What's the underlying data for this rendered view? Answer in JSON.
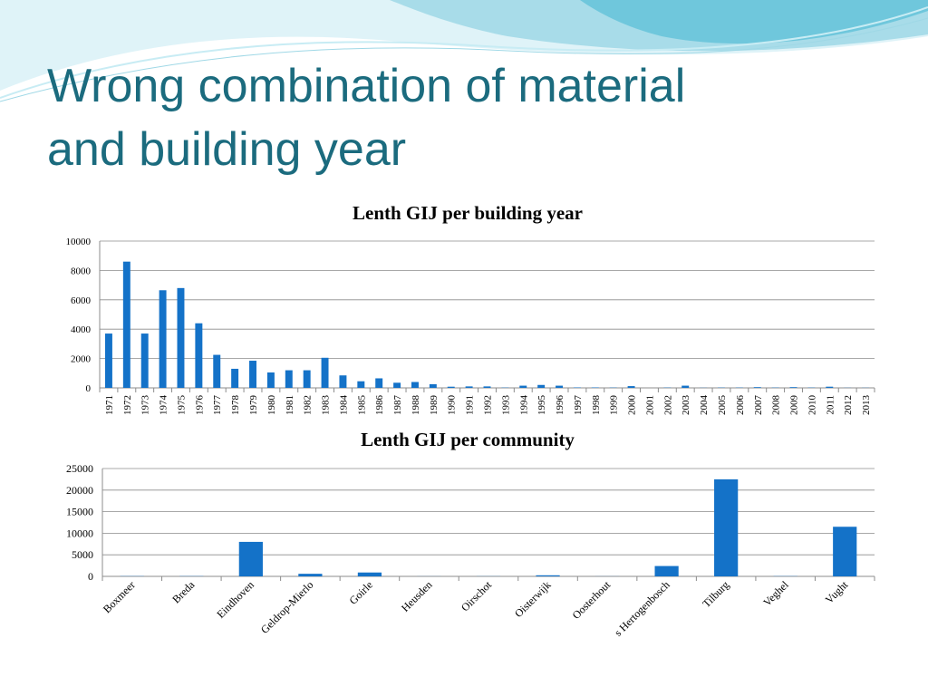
{
  "slide": {
    "title_line1": "Wrong combination of material",
    "title_line2": "and building year"
  },
  "colors": {
    "title": "#1b6b7e",
    "bar": "#1472c8",
    "wave_light": "#bfe6f0",
    "wave_dark": "#6fc7dc"
  },
  "chart_data": [
    {
      "type": "bar",
      "title": "Lenth GIJ per building year",
      "xlabel": "",
      "ylabel": "",
      "ylim": [
        0,
        10000
      ],
      "yticks": [
        0,
        2000,
        4000,
        6000,
        8000,
        10000
      ],
      "grid": true,
      "legend": "none",
      "categories": [
        "1971",
        "1972",
        "1973",
        "1974",
        "1975",
        "1976",
        "1977",
        "1978",
        "1979",
        "1980",
        "1981",
        "1982",
        "1983",
        "1984",
        "1985",
        "1986",
        "1987",
        "1988",
        "1989",
        "1990",
        "1991",
        "1992",
        "1993",
        "1994",
        "1995",
        "1996",
        "1997",
        "1998",
        "1999",
        "2000",
        "2001",
        "2002",
        "2003",
        "2004",
        "2005",
        "2006",
        "2007",
        "2008",
        "2009",
        "2010",
        "2011",
        "2012",
        "2013"
      ],
      "values": [
        3700,
        8600,
        3700,
        6650,
        6800,
        4400,
        2250,
        1300,
        1850,
        1050,
        1200,
        1200,
        2050,
        850,
        450,
        650,
        350,
        400,
        250,
        80,
        100,
        100,
        20,
        150,
        200,
        150,
        30,
        30,
        20,
        120,
        0,
        20,
        150,
        10,
        20,
        20,
        50,
        20,
        50,
        20,
        80,
        10,
        10
      ]
    },
    {
      "type": "bar",
      "title": "Lenth GIJ per community",
      "xlabel": "",
      "ylabel": "",
      "ylim": [
        0,
        25000
      ],
      "yticks": [
        0,
        5000,
        10000,
        15000,
        20000,
        25000
      ],
      "grid": true,
      "legend": "none",
      "categories": [
        "Boxmeer",
        "Breda",
        "Eindhoven",
        "Geldrop-Mierlo",
        "Goirle",
        "Heusden",
        "Oirschot",
        "Oisterwijk",
        "Oosterhout",
        "s Hertogenbosch",
        "Tilburg",
        "Veghel",
        "Vught"
      ],
      "values": [
        50,
        50,
        8000,
        600,
        900,
        20,
        30,
        250,
        20,
        2400,
        22500,
        50,
        11500
      ]
    }
  ]
}
